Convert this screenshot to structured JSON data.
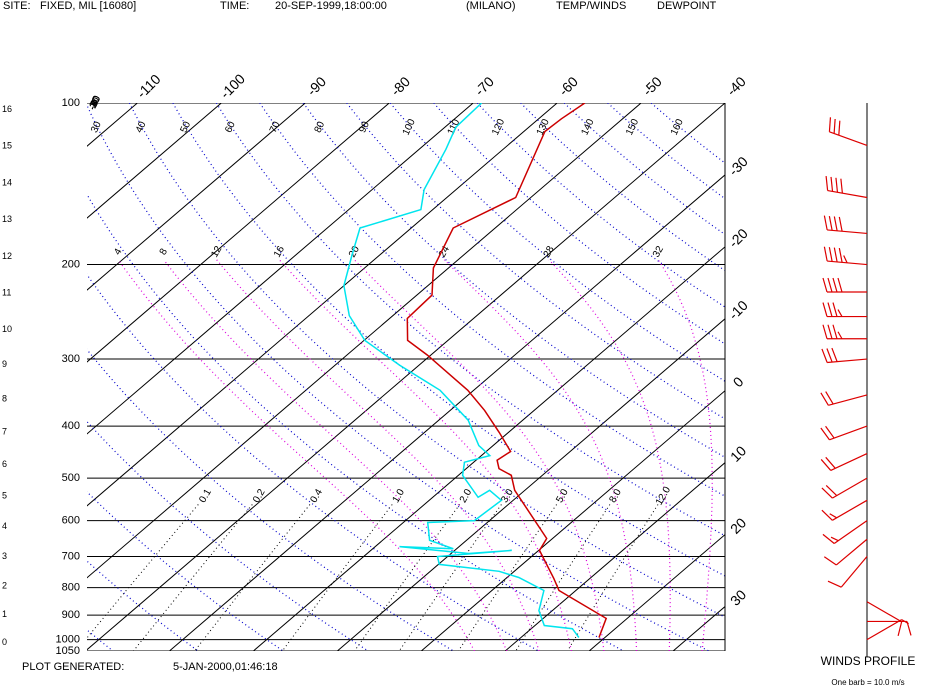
{
  "header": {
    "site_label": "SITE:",
    "site": "FIXED, MIL [16080]",
    "time_label": "TIME:",
    "time": "20-SEP-1999,18:00:00",
    "station": "(MILANO)"
  },
  "footer": {
    "label": "PLOT GENERATED:",
    "time": "5-JAN-2000,01:46:18"
  },
  "chart_data": [
    {
      "type": "skewt",
      "series": [
        {
          "name": "TEMP/WINDS",
          "color": "#cc0000",
          "x": [
            19.3,
            17.5,
            8.0,
            5.7,
            0.1,
            -0.7,
            -11.2,
            -13.7,
            -16.1,
            -17.5,
            -17.1,
            -21.1,
            -25.9,
            -30.7,
            -40.4,
            -44.8,
            -47.9,
            -48.2,
            -51.8,
            -55,
            -51.8,
            -57.5,
            -57.3,
            -56.7
          ],
          "values": [
            991,
            913,
            810,
            769,
            682,
            648,
            527,
            494,
            480,
            463,
            446,
            411,
            374,
            343,
            295,
            277,
            252,
            228,
            203,
            171,
            150,
            113,
            107,
            100
          ]
        },
        {
          "name": "DEWPOINT",
          "color": "#00e5ee",
          "x": [
            16.9,
            14.9,
            11.1,
            8.4,
            6.2,
            1.4,
            -1.8,
            -9.9,
            -11.2,
            -3.2,
            -7.9,
            -17.1,
            -10.4,
            -14.4,
            -17.1,
            -11.8,
            -11.4,
            -14.2,
            -14.6,
            -19.5,
            -21.1,
            -19,
            -21.7,
            -26.5,
            -34,
            -42.3,
            -49.9,
            -55.2,
            -60,
            -63.3,
            -66.1,
            -61.4,
            -63.8,
            -66.8,
            -68.7,
            -69
          ],
          "values": [
            991,
            954,
            941,
            883,
            810,
            766,
            746,
            724,
            700,
            682,
            691,
            671,
            677,
            653,
            605,
            600,
            550,
            527,
            543,
            494,
            467,
            454,
            435,
            390,
            343,
            308,
            277,
            249,
            219,
            192,
            171,
            158,
            145,
            122,
            111,
            100
          ]
        }
      ],
      "xlim": [
        -116,
        -40
      ],
      "xticks": [
        -110,
        -100,
        -90,
        -80,
        -70,
        -60,
        -50,
        -40,
        -30,
        -20,
        -10,
        0,
        10,
        20,
        30
      ],
      "ylim": [
        100,
        1050
      ],
      "yticks": [
        100,
        200,
        300,
        400,
        500,
        600,
        700,
        800,
        900,
        1000,
        1050
      ],
      "ylog": true,
      "dry_adiabats": [
        -40,
        -30,
        -20,
        -10,
        0,
        10,
        20,
        30,
        40,
        50,
        60,
        70,
        80,
        90,
        100,
        110,
        120,
        130,
        140,
        150,
        160
      ],
      "moist_adiabats": [
        4,
        8,
        12,
        16,
        20,
        24,
        28,
        32
      ],
      "mixing_ratios": [
        0.1,
        0.2,
        0.4,
        {
          "value": 1,
          "label": "1.0"
        },
        {
          "value": 2,
          "label": "2.0"
        },
        {
          "value": 3,
          "label": "3.0"
        },
        {
          "value": 5,
          "label": "5.0"
        },
        {
          "value": 8,
          "label": "8.0"
        },
        {
          "value": 12,
          "label": "12.0"
        }
      ],
      "height_ticks": [
        0,
        1,
        2,
        3,
        4,
        5,
        6,
        7,
        8,
        9,
        10,
        11,
        12,
        13,
        14,
        15,
        16
      ]
    },
    {
      "type": "wind-profile",
      "title": "WINDS PROFILE",
      "subtitle": "One barb = 10.0 m/s",
      "color": "#dd0000",
      "pressure": [
        120,
        150,
        175,
        200,
        225,
        250,
        275,
        300,
        350,
        400,
        450,
        500,
        550,
        600,
        650,
        700,
        850,
        925,
        1000
      ],
      "direction": [
        290,
        280,
        275,
        275,
        270,
        270,
        270,
        265,
        255,
        250,
        245,
        240,
        240,
        235,
        230,
        220,
        120,
        90,
        60
      ],
      "speed": [
        30,
        40,
        40,
        45,
        40,
        35,
        35,
        30,
        20,
        20,
        20,
        20,
        15,
        15,
        10,
        10,
        10,
        10,
        5
      ]
    }
  ]
}
